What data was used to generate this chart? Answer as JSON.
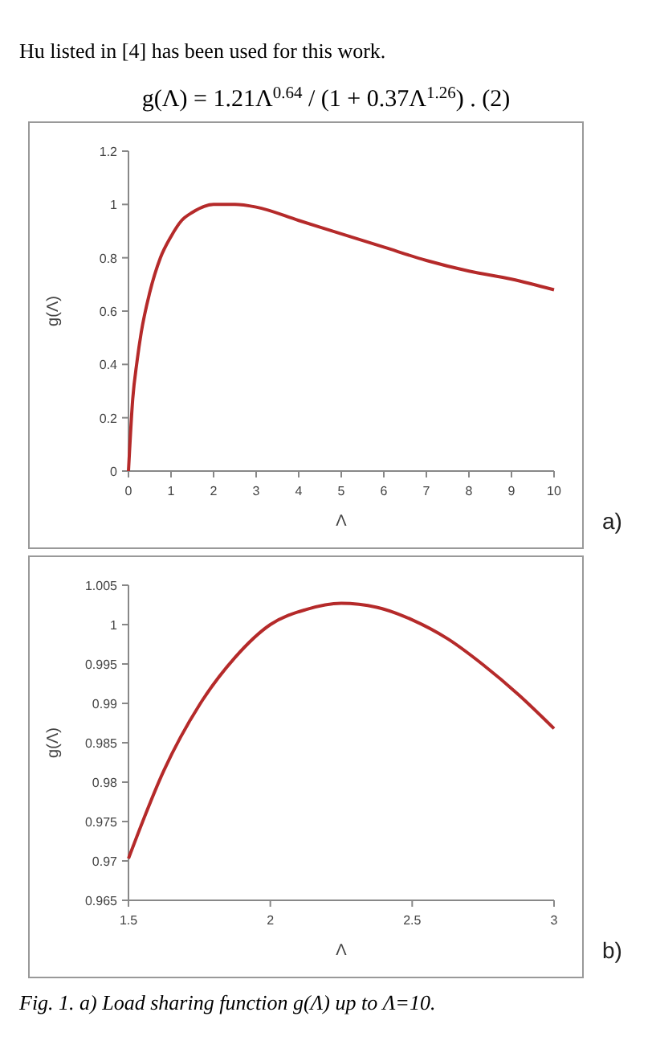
{
  "chart_data": [
    {
      "type": "line",
      "ylabel": "g(Λ)",
      "xlabel": "Λ",
      "annotations": [
        "Hu listed in [4] has been used for this work.",
        "g(Λ) = 1.21Λ$^{0.64}$ / (1 + 0.37Λ$^{1.26}$) .     (2)",
        "a)"
      ],
      "xlim": [
        0,
        10
      ],
      "xticks": [
        0,
        1,
        2,
        3,
        4,
        5,
        6,
        7,
        8,
        9,
        10
      ],
      "ylim": [
        0,
        1.2
      ],
      "yticks": [
        0,
        0.2,
        0.4,
        0.6,
        0.8,
        1,
        1.2
      ],
      "marker": "none",
      "series": [
        {
          "color": "#b52a2a",
          "x": [
            0,
            0.1,
            0.2,
            0.3,
            0.5,
            0.75,
            1,
            1.25,
            1.5,
            2,
            2.25,
            2.5,
            3,
            4,
            5,
            6,
            7,
            8,
            9,
            10
          ],
          "values": [
            0,
            0.27,
            0.41,
            0.52,
            0.67,
            0.8,
            0.88,
            0.94,
            0.97,
            1,
            1,
            1,
            0.99,
            0.94,
            0.89,
            0.84,
            0.79,
            0.75,
            0.72,
            0.68
          ]
        }
      ]
    },
    {
      "type": "line",
      "ylabel": "g(Λ)",
      "xlabel": "Λ",
      "annotations": [
        "b)",
        "Fig. 1. a) Load sharing function g(Λ) up to Λ=10."
      ],
      "xlim": [
        1.5,
        3
      ],
      "xticks": [
        1.5,
        2,
        2.5,
        3
      ],
      "ylim": [
        0.965,
        1.005
      ],
      "yticks": [
        0.965,
        0.97,
        0.975,
        0.98,
        0.985,
        0.99,
        0.995,
        1,
        1.005
      ],
      "marker": "none",
      "series": [
        {
          "color": "#b52a2a",
          "x": [
            1.5,
            1.625,
            1.75,
            1.875,
            2,
            2.125,
            2.25,
            2.375,
            2.5,
            2.625,
            2.75,
            2.875,
            3
          ],
          "values": [
            0.9703,
            0.9815,
            0.9898,
            0.9958,
            1.0,
            1.0019,
            1.0027,
            1.0022,
            1.0006,
            0.9982,
            0.9949,
            0.9911,
            0.9868
          ]
        }
      ]
    }
  ]
}
